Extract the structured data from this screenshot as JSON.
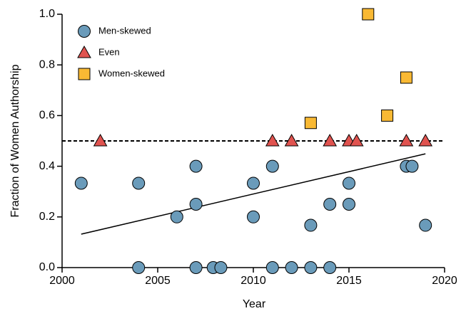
{
  "chart_data": {
    "type": "scatter",
    "xlabel": "Year",
    "ylabel": "Fraction of Women Authorship",
    "xlim": [
      2000,
      2020
    ],
    "xticks": [
      2000,
      2005,
      2010,
      2015,
      2020
    ],
    "ylim": [
      0,
      1
    ],
    "yticks": [
      {
        "value": 0,
        "label": "0.0"
      },
      0.2,
      0.4,
      0.6,
      0.8,
      {
        "value": 1,
        "label": "1.0"
      }
    ],
    "legend": "top-left",
    "hline": 0.5,
    "series": [
      {
        "name": "Men-skewed",
        "marker": "circle",
        "color": "#6a9bba",
        "x": [
          2001,
          2004,
          2004,
          2006,
          2007,
          2007,
          2007,
          2007.9,
          2008.3,
          2010,
          2010,
          2011,
          2011,
          2012,
          2013,
          2013,
          2014,
          2014,
          2015,
          2015,
          2018,
          2018.3,
          2019
        ],
        "values": [
          0.333,
          0.333,
          0,
          0.2,
          0.4,
          0.25,
          0,
          0,
          0,
          0.333,
          0.2,
          0.4,
          0,
          0,
          0.167,
          0,
          0.25,
          0,
          0.333,
          0.25,
          0.4,
          0.4,
          0.167
        ]
      },
      {
        "name": "Even",
        "marker": "triangle",
        "color": "#e0534f",
        "x": [
          2002,
          2011,
          2012,
          2014,
          2015,
          2015.4,
          2018,
          2019
        ],
        "values": [
          0.5,
          0.5,
          0.5,
          0.5,
          0.5,
          0.5,
          0.5,
          0.5
        ]
      },
      {
        "name": "Women-skewed",
        "marker": "square",
        "color": "#f9b934",
        "x": [
          2013,
          2016,
          2017,
          2018
        ],
        "values": [
          0.571,
          1.0,
          0.6,
          0.75
        ]
      }
    ],
    "trend": {
      "x": [
        2001,
        2019
      ],
      "values": [
        0.132,
        0.449
      ],
      "color": "#000000"
    }
  }
}
